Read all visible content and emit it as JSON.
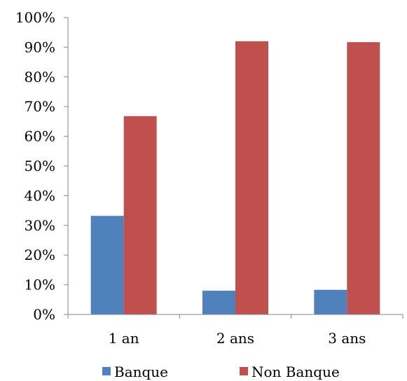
{
  "chart_data": {
    "type": "bar",
    "categories": [
      "1 an",
      "2 ans",
      "3 ans"
    ],
    "series": [
      {
        "name": "Banque",
        "values": [
          33.2,
          8.0,
          8.3
        ],
        "color": "#4F81BD"
      },
      {
        "name": "Non Banque",
        "values": [
          66.8,
          92.0,
          91.7
        ],
        "color": "#C0504D"
      }
    ],
    "yticks": [
      "0%",
      "10%",
      "20%",
      "30%",
      "40%",
      "50%",
      "60%",
      "70%",
      "80%",
      "90%",
      "100%"
    ],
    "ylim": [
      0,
      100
    ],
    "grid": false,
    "legend_position": "bottom",
    "axis_color": "#868686"
  }
}
